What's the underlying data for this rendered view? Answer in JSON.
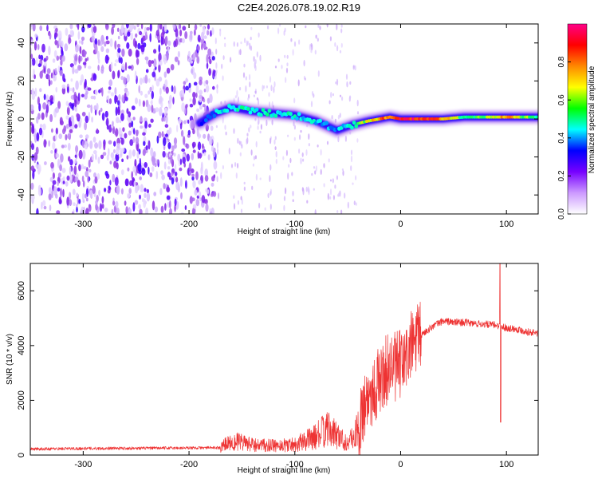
{
  "title": "C2E4.2026.078.19.02.R19",
  "chart_data": [
    {
      "type": "heatmap",
      "name": "spectrogram",
      "xlabel": "Height of straight line (km)",
      "ylabel": "Frequency (Hz)",
      "xlim": [
        -350,
        130
      ],
      "ylim": [
        -50,
        50
      ],
      "xticks": [
        -300,
        -200,
        -100,
        0,
        100
      ],
      "yticks": [
        -40,
        -20,
        0,
        20,
        40
      ],
      "colorbar": {
        "label": "Normalized spectral amplitude",
        "range": [
          0,
          1
        ],
        "ticks": [
          0.0,
          0.2,
          0.4,
          0.6,
          0.8
        ],
        "colors": [
          "#ffffff",
          "#cc99ff",
          "#7700ff",
          "#0000ff",
          "#00ffff",
          "#00ff00",
          "#ffff00",
          "#ff8800",
          "#ff0000",
          "#ff0088"
        ]
      },
      "ridge": {
        "x": [
          -190,
          -175,
          -160,
          -140,
          -120,
          -100,
          -80,
          -60,
          -45,
          -30,
          -10,
          0,
          20,
          40,
          60,
          80,
          100,
          130
        ],
        "freq": [
          -2,
          3,
          6,
          4,
          3,
          2,
          -1,
          -6,
          -3,
          -1,
          1,
          0,
          0,
          0,
          1,
          1,
          1,
          1
        ],
        "amplitude": [
          0.3,
          0.45,
          0.5,
          0.5,
          0.5,
          0.48,
          0.45,
          0.4,
          0.55,
          0.7,
          0.85,
          0.95,
          0.9,
          0.8,
          0.55,
          0.6,
          0.8,
          0.5
        ]
      },
      "noise_region_end": -175
    },
    {
      "type": "line",
      "name": "snr",
      "xlabel": "Height of straight line (km)",
      "ylabel": "SNR (10 * v/v)",
      "xlim": [
        -350,
        130
      ],
      "ylim": [
        0,
        7000
      ],
      "xticks": [
        -300,
        -200,
        -100,
        0,
        100
      ],
      "yticks": [
        0,
        2000,
        4000,
        6000
      ],
      "line_color": "#ee3333",
      "series": {
        "x": [
          -350,
          -300,
          -250,
          -200,
          -170,
          -160,
          -140,
          -120,
          -100,
          -90,
          -80,
          -70,
          -60,
          -50,
          -40,
          -35,
          -30,
          -25,
          -20,
          -15,
          -10,
          -5,
          0,
          5,
          10,
          20,
          30,
          40,
          50,
          60,
          70,
          80,
          90,
          95,
          100,
          110,
          120,
          130
        ],
        "y": [
          220,
          240,
          250,
          260,
          270,
          500,
          350,
          320,
          380,
          500,
          650,
          900,
          700,
          400,
          900,
          1800,
          2200,
          2400,
          2700,
          3000,
          3300,
          3200,
          3300,
          3500,
          4000,
          4400,
          4700,
          4900,
          4850,
          4850,
          4800,
          4780,
          4750,
          4700,
          4650,
          4600,
          4500,
          4450
        ]
      },
      "spike": {
        "x": 94,
        "y_max": 7000,
        "y_min": 1200
      }
    }
  ]
}
